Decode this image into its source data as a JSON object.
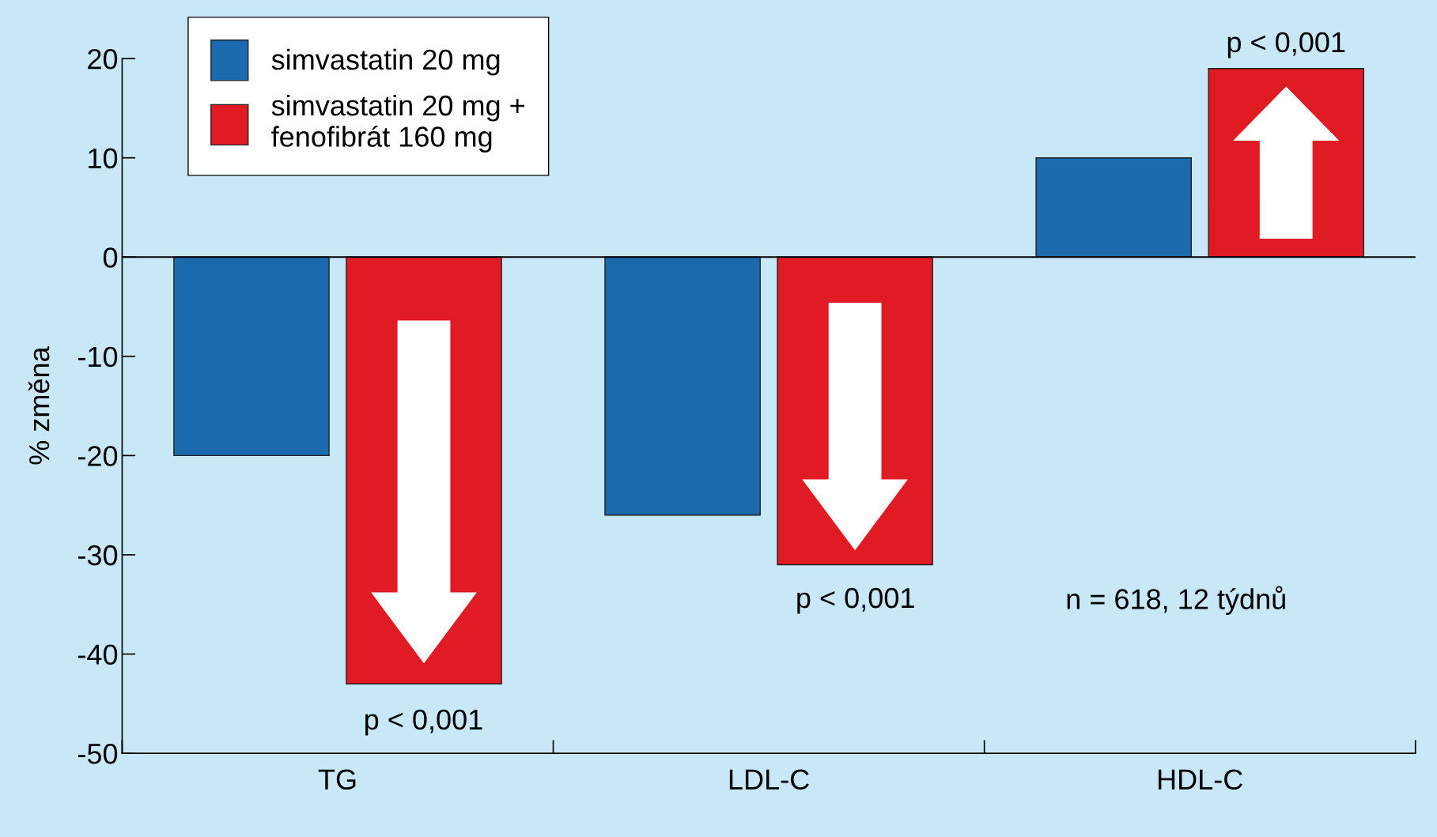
{
  "chart_data": {
    "type": "bar",
    "categories": [
      "TG",
      "LDL-C",
      "HDL-C"
    ],
    "ylabel": "% změna",
    "series": [
      {
        "name": "simvastatin 20 mg",
        "color": "#1b6aae",
        "values": [
          -20,
          -26,
          10
        ]
      },
      {
        "name": "simvastatin 20 mg + fenofibrát 160 mg",
        "color": "#e01b24",
        "values": [
          -43,
          -31,
          19
        ]
      }
    ],
    "ylim": [
      -50,
      20
    ],
    "yticks": [
      -50,
      -40,
      -30,
      -20,
      -10,
      0,
      10,
      20
    ],
    "ref_lines": [
      {
        "axis": "y",
        "value": 0,
        "color": "#000000"
      }
    ],
    "annotations": [
      "p < 0,001",
      "p < 0,001",
      "p < 0,001",
      "n = 618, 12 týdnů"
    ],
    "legend": "top left",
    "grid": false
  }
}
